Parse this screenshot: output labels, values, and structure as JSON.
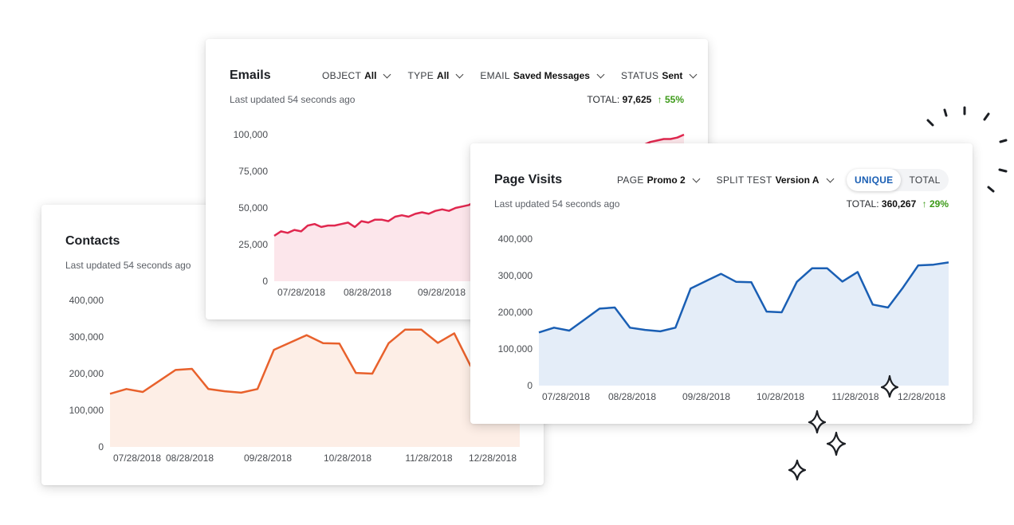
{
  "contacts": {
    "title": "Contacts",
    "updated": "Last updated 54 seconds ago",
    "chart_data": {
      "type": "area",
      "ylim": [
        0,
        400000
      ],
      "ytick_labels": [
        "400,000",
        "300,000",
        "200,000",
        "100,000",
        "0"
      ],
      "xtick_labels": [
        "07/28/2018",
        "08/28/2018",
        "09/28/2018",
        "10/28/2018",
        "11/28/2018",
        "12/28/2018"
      ],
      "values": [
        145000,
        158000,
        150000,
        180000,
        210000,
        213000,
        158000,
        152000,
        148000,
        158000,
        265000,
        285000,
        305000,
        283000,
        282000,
        202000,
        200000,
        283000,
        320000,
        320000,
        284000,
        310000,
        221000,
        213000,
        268000,
        328000
      ],
      "color": "#e8612c",
      "fill": "#fdeee6"
    }
  },
  "emails": {
    "title": "Emails",
    "updated": "Last updated 54 seconds ago",
    "filters": [
      {
        "label": "OBJECT",
        "value": "All"
      },
      {
        "label": "TYPE",
        "value": "All"
      },
      {
        "label": "EMAIL",
        "value": "Saved Messages"
      },
      {
        "label": "STATUS",
        "value": "Sent"
      }
    ],
    "total_label": "TOTAL:",
    "total_value": "97,625",
    "total_change": "↑ 55%",
    "chart_data": {
      "type": "area",
      "ylim": [
        0,
        100000
      ],
      "ytick_labels": [
        "100,000",
        "75,000",
        "50,000",
        "25,000",
        "0"
      ],
      "xtick_labels": [
        "07/28/2018",
        "08/28/2018",
        "09/28/2018"
      ],
      "values": [
        31000,
        34000,
        33000,
        35000,
        34000,
        38000,
        39000,
        37000,
        38000,
        38000,
        39000,
        40000,
        37000,
        41000,
        40000,
        42000,
        42000,
        41000,
        44000,
        45000,
        44000,
        46000,
        47000,
        46000,
        48000,
        49000,
        48000,
        50000,
        51000,
        52000,
        55000,
        56000,
        58000,
        60000,
        61000,
        62000,
        61000,
        62000,
        64000,
        65000,
        66000,
        67000,
        68000,
        70000,
        72000,
        74000,
        75000,
        77000,
        79000,
        81000,
        83000,
        85000,
        87000,
        89000,
        91000,
        93000,
        95000,
        96000,
        97000,
        97000,
        98000,
        100000
      ],
      "color": "#e0284f",
      "fill": "#fce6eb"
    }
  },
  "page_visits": {
    "title": "Page Visits",
    "updated": "Last updated 54 seconds ago",
    "filters": [
      {
        "label": "PAGE",
        "value": "Promo 2"
      },
      {
        "label": "SPLIT TEST",
        "value": "Version A"
      }
    ],
    "toggle": {
      "unique": "UNIQUE",
      "total": "TOTAL"
    },
    "total_label": "TOTAL:",
    "total_value": "360,267",
    "total_change": "↑ 29%",
    "chart_data": {
      "type": "area",
      "ylim": [
        0,
        400000
      ],
      "ytick_labels": [
        "400,000",
        "300,000",
        "200,000",
        "100,000",
        "0"
      ],
      "xtick_labels": [
        "07/28/2018",
        "08/28/2018",
        "09/28/2018",
        "10/28/2018",
        "11/28/2018",
        "12/28/2018"
      ],
      "values": [
        145000,
        158000,
        150000,
        180000,
        210000,
        213000,
        158000,
        152000,
        148000,
        158000,
        265000,
        285000,
        305000,
        283000,
        282000,
        202000,
        200000,
        283000,
        320000,
        320000,
        284000,
        310000,
        221000,
        213000,
        268000,
        328000,
        330000,
        336000
      ],
      "color": "#1a5fb4",
      "fill": "#e4edf8"
    }
  }
}
